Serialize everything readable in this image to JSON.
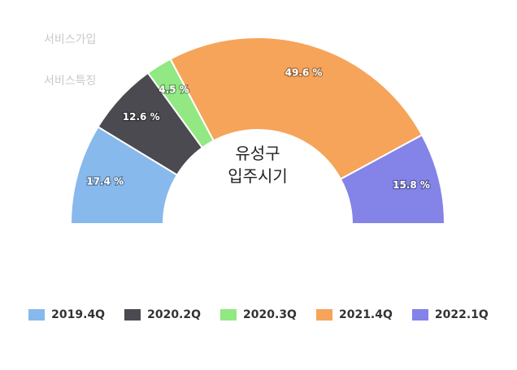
{
  "background_links": [
    {
      "label": "서비스가입"
    },
    {
      "label": "서비스특징"
    }
  ],
  "center_label": [
    "유성구",
    "입주시기"
  ],
  "chart_data": {
    "type": "pie",
    "variant": "semicircle-donut",
    "title": "",
    "categories": [
      "2019.4Q",
      "2020.2Q",
      "2020.3Q",
      "2021.4Q",
      "2022.1Q"
    ],
    "values": [
      17.4,
      12.6,
      4.5,
      49.6,
      15.8
    ],
    "labels": [
      "17.4 %",
      "12.6 %",
      "4.5 %",
      "49.6 %",
      "15.8 %"
    ],
    "colors": [
      "#87b9ec",
      "#4a4a50",
      "#92e882",
      "#f6a45a",
      "#8383e8"
    ],
    "legend_position": "bottom"
  }
}
